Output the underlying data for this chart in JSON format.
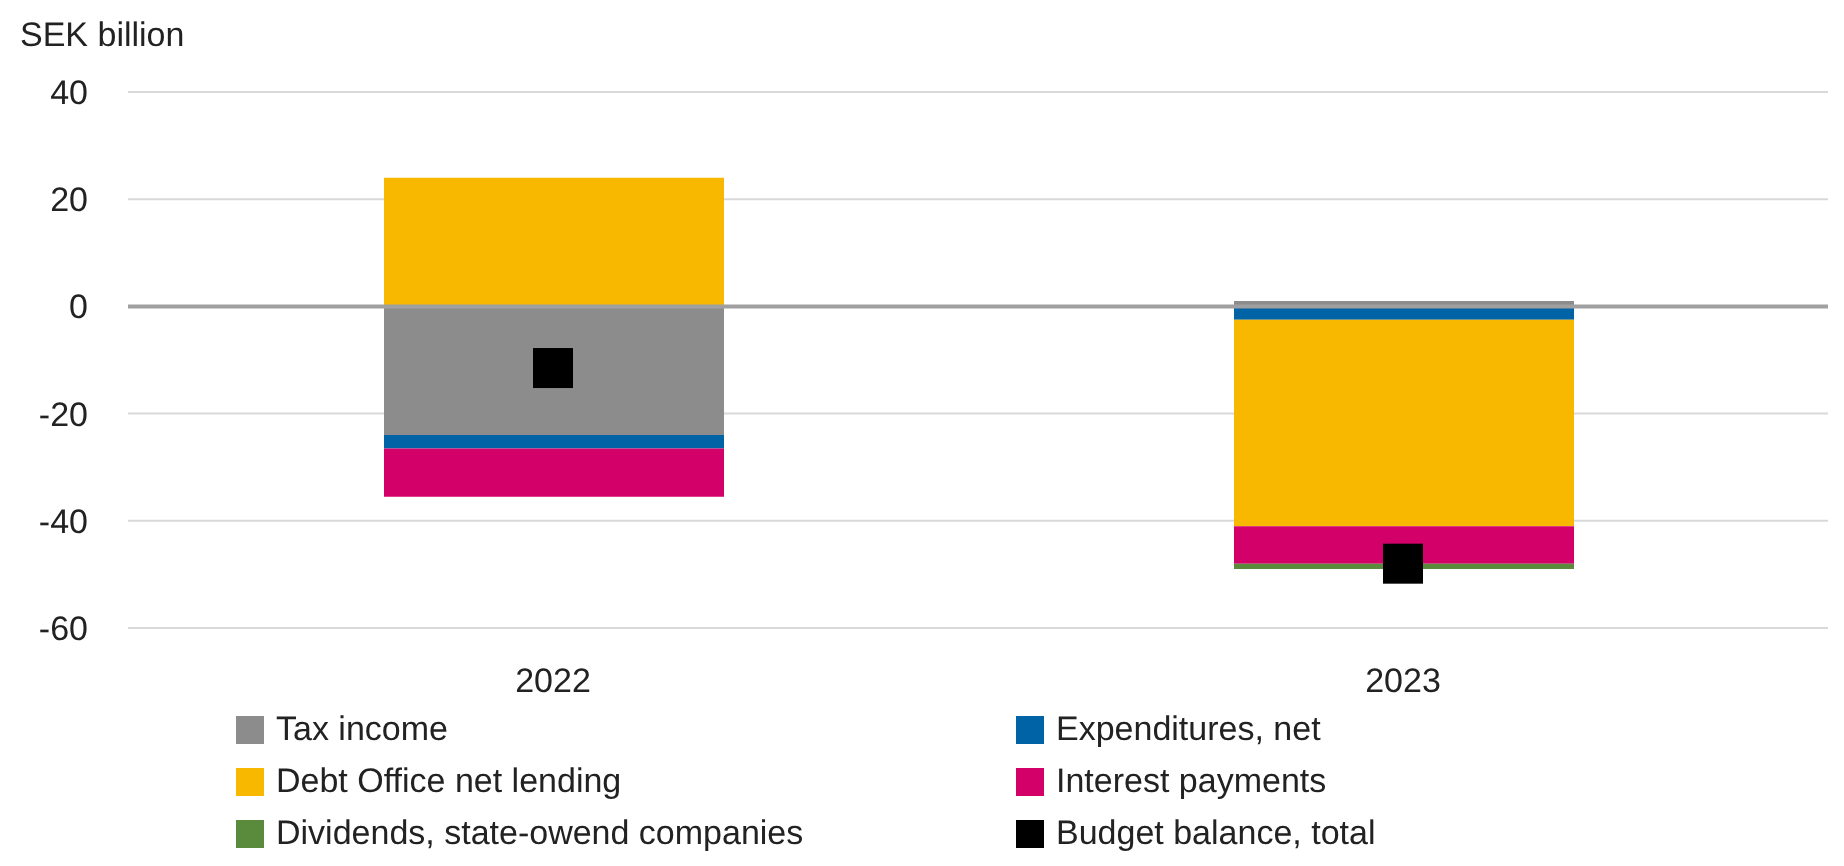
{
  "chart_data": {
    "type": "bar",
    "ylabel": "SEK billion",
    "categories": [
      "2022",
      "2023"
    ],
    "stacked": true,
    "series": [
      {
        "name": "Tax income",
        "color": "#8c8c8c",
        "values": [
          -24,
          1
        ]
      },
      {
        "name": "Expenditures, net",
        "color": "#0063a6",
        "values": [
          -2.5,
          -2.5
        ]
      },
      {
        "name": "Debt Office net lending",
        "color": "#f9b800",
        "values": [
          24,
          -38.5
        ]
      },
      {
        "name": "Interest payments",
        "color": "#d4006a",
        "values": [
          -9,
          -7
        ]
      },
      {
        "name": "Dividends, state-owend companies",
        "color": "#5a8a3c",
        "values": [
          null,
          -1
        ]
      },
      {
        "name": "Budget balance, total",
        "type": "scatter",
        "marker": "square",
        "color": "#000000",
        "values": [
          -11.5,
          -48
        ]
      }
    ],
    "ylim": [
      -60,
      40
    ],
    "yticks": [
      40,
      20,
      0,
      -20,
      -40,
      -60
    ],
    "grid": "y",
    "legend": "bottom",
    "ref_lines": [
      {
        "axis": "y",
        "value": 0,
        "color": "#a0a0a0"
      }
    ]
  }
}
